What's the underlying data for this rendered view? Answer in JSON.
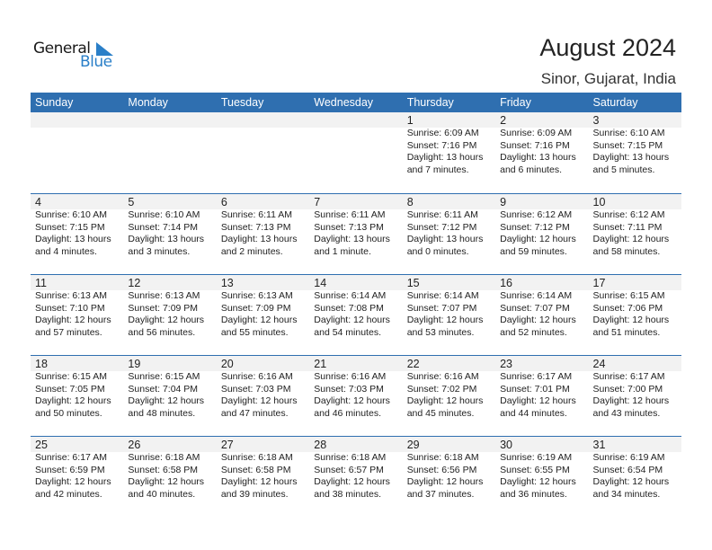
{
  "logo": {
    "word1": "General",
    "word2": "Blue"
  },
  "title": "August 2024",
  "location": "Sinor, Gujarat, India",
  "colors": {
    "header": "#2f6fb0",
    "band": "#f2f2f2",
    "logo_blue": "#2a7fc8"
  },
  "weekdays": [
    "Sunday",
    "Monday",
    "Tuesday",
    "Wednesday",
    "Thursday",
    "Friday",
    "Saturday"
  ],
  "weeks": [
    [
      null,
      null,
      null,
      null,
      {
        "d": "1",
        "sr": "Sunrise: 6:09 AM",
        "ss": "Sunset: 7:16 PM",
        "dl": "Daylight: 13 hours",
        "dm": "and 7 minutes."
      },
      {
        "d": "2",
        "sr": "Sunrise: 6:09 AM",
        "ss": "Sunset: 7:16 PM",
        "dl": "Daylight: 13 hours",
        "dm": "and 6 minutes."
      },
      {
        "d": "3",
        "sr": "Sunrise: 6:10 AM",
        "ss": "Sunset: 7:15 PM",
        "dl": "Daylight: 13 hours",
        "dm": "and 5 minutes."
      }
    ],
    [
      {
        "d": "4",
        "sr": "Sunrise: 6:10 AM",
        "ss": "Sunset: 7:15 PM",
        "dl": "Daylight: 13 hours",
        "dm": "and 4 minutes."
      },
      {
        "d": "5",
        "sr": "Sunrise: 6:10 AM",
        "ss": "Sunset: 7:14 PM",
        "dl": "Daylight: 13 hours",
        "dm": "and 3 minutes."
      },
      {
        "d": "6",
        "sr": "Sunrise: 6:11 AM",
        "ss": "Sunset: 7:13 PM",
        "dl": "Daylight: 13 hours",
        "dm": "and 2 minutes."
      },
      {
        "d": "7",
        "sr": "Sunrise: 6:11 AM",
        "ss": "Sunset: 7:13 PM",
        "dl": "Daylight: 13 hours",
        "dm": "and 1 minute."
      },
      {
        "d": "8",
        "sr": "Sunrise: 6:11 AM",
        "ss": "Sunset: 7:12 PM",
        "dl": "Daylight: 13 hours",
        "dm": "and 0 minutes."
      },
      {
        "d": "9",
        "sr": "Sunrise: 6:12 AM",
        "ss": "Sunset: 7:12 PM",
        "dl": "Daylight: 12 hours",
        "dm": "and 59 minutes."
      },
      {
        "d": "10",
        "sr": "Sunrise: 6:12 AM",
        "ss": "Sunset: 7:11 PM",
        "dl": "Daylight: 12 hours",
        "dm": "and 58 minutes."
      }
    ],
    [
      {
        "d": "11",
        "sr": "Sunrise: 6:13 AM",
        "ss": "Sunset: 7:10 PM",
        "dl": "Daylight: 12 hours",
        "dm": "and 57 minutes."
      },
      {
        "d": "12",
        "sr": "Sunrise: 6:13 AM",
        "ss": "Sunset: 7:09 PM",
        "dl": "Daylight: 12 hours",
        "dm": "and 56 minutes."
      },
      {
        "d": "13",
        "sr": "Sunrise: 6:13 AM",
        "ss": "Sunset: 7:09 PM",
        "dl": "Daylight: 12 hours",
        "dm": "and 55 minutes."
      },
      {
        "d": "14",
        "sr": "Sunrise: 6:14 AM",
        "ss": "Sunset: 7:08 PM",
        "dl": "Daylight: 12 hours",
        "dm": "and 54 minutes."
      },
      {
        "d": "15",
        "sr": "Sunrise: 6:14 AM",
        "ss": "Sunset: 7:07 PM",
        "dl": "Daylight: 12 hours",
        "dm": "and 53 minutes."
      },
      {
        "d": "16",
        "sr": "Sunrise: 6:14 AM",
        "ss": "Sunset: 7:07 PM",
        "dl": "Daylight: 12 hours",
        "dm": "and 52 minutes."
      },
      {
        "d": "17",
        "sr": "Sunrise: 6:15 AM",
        "ss": "Sunset: 7:06 PM",
        "dl": "Daylight: 12 hours",
        "dm": "and 51 minutes."
      }
    ],
    [
      {
        "d": "18",
        "sr": "Sunrise: 6:15 AM",
        "ss": "Sunset: 7:05 PM",
        "dl": "Daylight: 12 hours",
        "dm": "and 50 minutes."
      },
      {
        "d": "19",
        "sr": "Sunrise: 6:15 AM",
        "ss": "Sunset: 7:04 PM",
        "dl": "Daylight: 12 hours",
        "dm": "and 48 minutes."
      },
      {
        "d": "20",
        "sr": "Sunrise: 6:16 AM",
        "ss": "Sunset: 7:03 PM",
        "dl": "Daylight: 12 hours",
        "dm": "and 47 minutes."
      },
      {
        "d": "21",
        "sr": "Sunrise: 6:16 AM",
        "ss": "Sunset: 7:03 PM",
        "dl": "Daylight: 12 hours",
        "dm": "and 46 minutes."
      },
      {
        "d": "22",
        "sr": "Sunrise: 6:16 AM",
        "ss": "Sunset: 7:02 PM",
        "dl": "Daylight: 12 hours",
        "dm": "and 45 minutes."
      },
      {
        "d": "23",
        "sr": "Sunrise: 6:17 AM",
        "ss": "Sunset: 7:01 PM",
        "dl": "Daylight: 12 hours",
        "dm": "and 44 minutes."
      },
      {
        "d": "24",
        "sr": "Sunrise: 6:17 AM",
        "ss": "Sunset: 7:00 PM",
        "dl": "Daylight: 12 hours",
        "dm": "and 43 minutes."
      }
    ],
    [
      {
        "d": "25",
        "sr": "Sunrise: 6:17 AM",
        "ss": "Sunset: 6:59 PM",
        "dl": "Daylight: 12 hours",
        "dm": "and 42 minutes."
      },
      {
        "d": "26",
        "sr": "Sunrise: 6:18 AM",
        "ss": "Sunset: 6:58 PM",
        "dl": "Daylight: 12 hours",
        "dm": "and 40 minutes."
      },
      {
        "d": "27",
        "sr": "Sunrise: 6:18 AM",
        "ss": "Sunset: 6:58 PM",
        "dl": "Daylight: 12 hours",
        "dm": "and 39 minutes."
      },
      {
        "d": "28",
        "sr": "Sunrise: 6:18 AM",
        "ss": "Sunset: 6:57 PM",
        "dl": "Daylight: 12 hours",
        "dm": "and 38 minutes."
      },
      {
        "d": "29",
        "sr": "Sunrise: 6:18 AM",
        "ss": "Sunset: 6:56 PM",
        "dl": "Daylight: 12 hours",
        "dm": "and 37 minutes."
      },
      {
        "d": "30",
        "sr": "Sunrise: 6:19 AM",
        "ss": "Sunset: 6:55 PM",
        "dl": "Daylight: 12 hours",
        "dm": "and 36 minutes."
      },
      {
        "d": "31",
        "sr": "Sunrise: 6:19 AM",
        "ss": "Sunset: 6:54 PM",
        "dl": "Daylight: 12 hours",
        "dm": "and 34 minutes."
      }
    ]
  ]
}
